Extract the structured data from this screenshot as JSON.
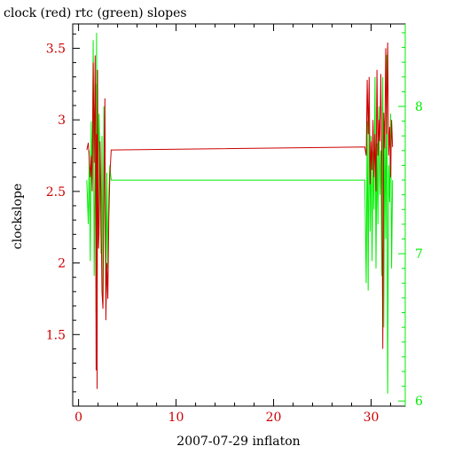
{
  "chart_data": {
    "type": "line",
    "title": "clock (red) rtc (green) slopes",
    "xlabel": "2007-07-29 inflaton",
    "ylabel": "clockslope",
    "y2label": "",
    "xlim": [
      -0.6,
      33.5
    ],
    "ylim": [
      1.0,
      3.67
    ],
    "y2lim": [
      5.965,
      8.56
    ],
    "x_ticks": [
      0,
      10,
      20,
      30
    ],
    "y_ticks": [
      1.5,
      2,
      2.5,
      3,
      3.5
    ],
    "y2_ticks": [
      6,
      7,
      8
    ],
    "x_tick_labels": [
      "0",
      "10",
      "20",
      "30"
    ],
    "y_tick_labels": [
      "1.5",
      "2",
      "2.5",
      "3",
      "3.5"
    ],
    "y2_tick_labels": [
      "6",
      "7",
      "8"
    ],
    "grid": false,
    "colors": {
      "clock": "#cc0000",
      "rtc": "#00ee00",
      "axis": "#000000"
    },
    "series": [
      {
        "axis": "left",
        "color": "#cc0000",
        "x": [
          0.85,
          1.0,
          1.1,
          1.2,
          1.3,
          1.4,
          1.5,
          1.6,
          1.7,
          1.75,
          1.8,
          1.85,
          1.9,
          1.95,
          2.0,
          2.05,
          2.1,
          2.2,
          2.3,
          2.4,
          2.5,
          2.6,
          2.7,
          2.8,
          2.9,
          3.0,
          3.1,
          3.2,
          3.35,
          29.35,
          29.5,
          29.6,
          29.7,
          29.8,
          29.9,
          30.0,
          30.1,
          30.2,
          30.3,
          30.4,
          30.5,
          30.6,
          30.7,
          30.8,
          30.9,
          31.0,
          31.1,
          31.2,
          31.3,
          31.4,
          31.5,
          31.6,
          31.7,
          31.8,
          31.9,
          32.0,
          32.1,
          32.2
        ],
        "y": [
          2.79,
          2.84,
          2.72,
          2.6,
          2.75,
          2.5,
          3.4,
          2.7,
          3.45,
          2.8,
          1.25,
          2.9,
          1.12,
          3.35,
          2.5,
          2.1,
          2.2,
          2.85,
          2.4,
          1.8,
          1.68,
          2.6,
          3.15,
          1.6,
          2.0,
          1.75,
          2.3,
          2.6,
          2.79,
          2.81,
          2.75,
          3.28,
          2.9,
          3.3,
          2.55,
          2.85,
          2.65,
          3.0,
          2.6,
          2.9,
          2.5,
          3.35,
          2.75,
          3.0,
          2.85,
          3.32,
          2.7,
          1.4,
          3.05,
          2.8,
          3.5,
          2.9,
          3.54,
          2.75,
          2.95,
          2.6,
          3.0,
          2.81
        ]
      },
      {
        "axis": "right",
        "color": "#00ee00",
        "x": [
          0.85,
          1.0,
          1.1,
          1.2,
          1.3,
          1.4,
          1.5,
          1.6,
          1.7,
          1.75,
          1.8,
          1.85,
          1.9,
          1.95,
          2.0,
          2.1,
          2.2,
          2.3,
          2.4,
          2.5,
          2.6,
          2.7,
          2.8,
          2.9,
          3.0,
          3.1,
          3.2,
          3.35,
          29.35,
          29.5,
          29.6,
          29.7,
          29.8,
          29.9,
          30.0,
          30.1,
          30.2,
          30.3,
          30.4,
          30.5,
          30.6,
          30.7,
          30.8,
          30.9,
          31.0,
          31.1,
          31.2,
          31.3,
          31.4,
          31.5,
          31.6,
          31.7,
          31.8,
          31.9,
          32.0,
          32.1,
          32.2
        ],
        "y": [
          7.5,
          7.2,
          7.7,
          6.95,
          7.9,
          7.45,
          8.45,
          6.85,
          7.6,
          8.15,
          6.6,
          8.5,
          6.75,
          7.4,
          7.2,
          7.95,
          7.6,
          7.0,
          7.8,
          6.65,
          8.0,
          7.3,
          6.7,
          7.55,
          6.9,
          7.4,
          7.6,
          7.5,
          7.5,
          6.8,
          7.9,
          6.75,
          8.1,
          7.15,
          7.8,
          6.95,
          7.7,
          7.3,
          8.2,
          6.9,
          7.75,
          7.2,
          8.0,
          7.4,
          7.7,
          6.85,
          8.2,
          6.5,
          7.9,
          7.1,
          8.35,
          6.05,
          7.6,
          7.35,
          7.95,
          6.9,
          7.5
        ]
      }
    ]
  }
}
